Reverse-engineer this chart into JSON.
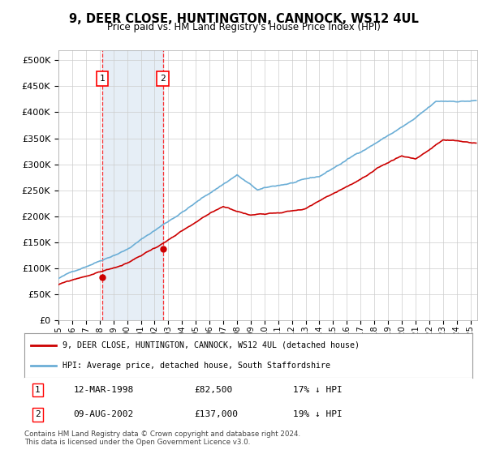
{
  "title": "9, DEER CLOSE, HUNTINGTON, CANNOCK, WS12 4UL",
  "subtitle": "Price paid vs. HM Land Registry's House Price Index (HPI)",
  "ytick_values": [
    0,
    50000,
    100000,
    150000,
    200000,
    250000,
    300000,
    350000,
    400000,
    450000,
    500000
  ],
  "ylim": [
    0,
    520000
  ],
  "xlim_start": 1995.0,
  "xlim_end": 2025.5,
  "xtick_years": [
    1995,
    1996,
    1997,
    1998,
    1999,
    2000,
    2001,
    2002,
    2003,
    2004,
    2005,
    2006,
    2007,
    2008,
    2009,
    2010,
    2011,
    2012,
    2013,
    2014,
    2015,
    2016,
    2017,
    2018,
    2019,
    2020,
    2021,
    2022,
    2023,
    2024,
    2025
  ],
  "hpi_color": "#6baed6",
  "price_color": "#cc0000",
  "sale1_date": 1998.2,
  "sale1_price": 82500,
  "sale1_label": "1",
  "sale2_date": 2002.6,
  "sale2_price": 137000,
  "sale2_label": "2",
  "legend_line1": "9, DEER CLOSE, HUNTINGTON, CANNOCK, WS12 4UL (detached house)",
  "legend_line2": "HPI: Average price, detached house, South Staffordshire",
  "table_row1_num": "1",
  "table_row1_date": "12-MAR-1998",
  "table_row1_price": "£82,500",
  "table_row1_hpi": "17% ↓ HPI",
  "table_row2_num": "2",
  "table_row2_date": "09-AUG-2002",
  "table_row2_price": "£137,000",
  "table_row2_hpi": "19% ↓ HPI",
  "footnote": "Contains HM Land Registry data © Crown copyright and database right 2024.\nThis data is licensed under the Open Government Licence v3.0.",
  "background_color": "#ffffff",
  "grid_color": "#cccccc",
  "shade_color": "#d6e4f0"
}
